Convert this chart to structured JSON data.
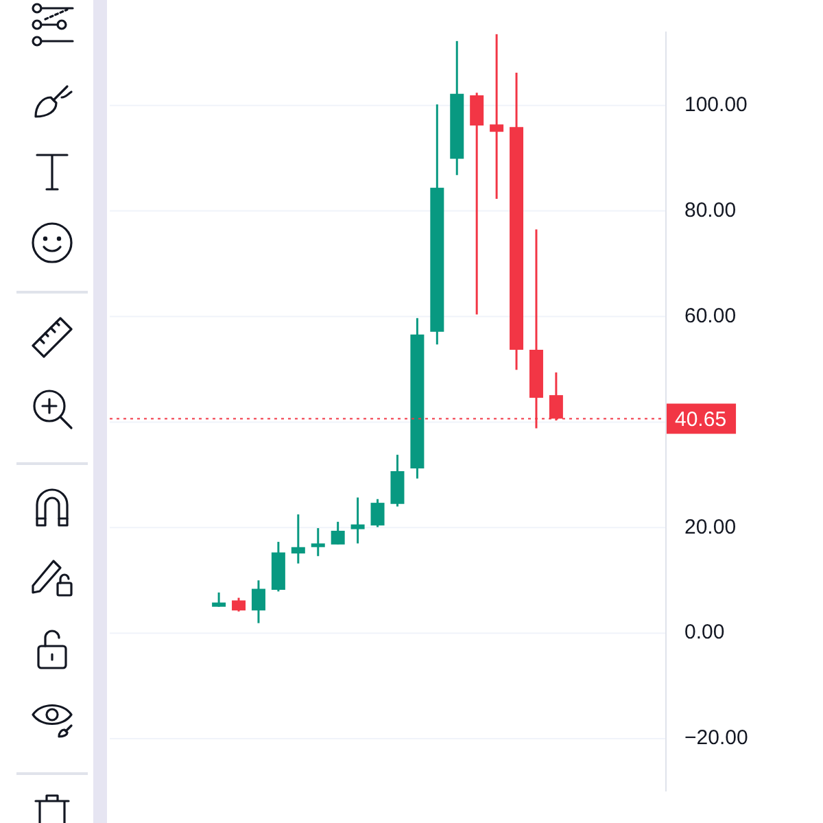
{
  "chart_data": {
    "type": "candlestick",
    "categories": [
      null,
      null,
      null,
      null,
      null,
      null,
      null,
      null,
      null,
      null,
      null,
      null,
      null,
      null,
      null,
      null,
      null,
      null,
      null,
      null,
      null,
      null,
      null,
      null,
      null,
      null,
      null,
      null
    ],
    "ohlc": [
      null,
      null,
      null,
      null,
      null,
      [
        5.0,
        7.7,
        5.0,
        5.8
      ],
      [
        6.2,
        6.7,
        4.1,
        4.3
      ],
      [
        4.3,
        10.0,
        1.9,
        8.4
      ],
      [
        8.2,
        17.3,
        7.9,
        15.3
      ],
      [
        15.1,
        22.5,
        13.2,
        16.3
      ],
      [
        16.3,
        19.9,
        14.6,
        17.0
      ],
      [
        16.8,
        21.1,
        16.8,
        19.4
      ],
      [
        19.7,
        25.7,
        17.0,
        20.6
      ],
      [
        20.4,
        25.4,
        20.1,
        24.7
      ],
      [
        24.5,
        33.8,
        24.0,
        30.7
      ],
      [
        31.2,
        59.7,
        29.3,
        56.6
      ],
      [
        57.1,
        100.2,
        54.7,
        84.4
      ],
      [
        89.9,
        112.2,
        86.8,
        102.2
      ],
      [
        101.9,
        102.4,
        60.4,
        96.2
      ],
      [
        96.4,
        113.5,
        82.3,
        95.0
      ],
      [
        95.9,
        106.2,
        49.9,
        53.7
      ],
      [
        53.7,
        76.5,
        38.8,
        44.6
      ],
      [
        45.1,
        49.4,
        40.3,
        40.65
      ],
      null,
      null,
      null,
      null,
      null
    ],
    "colors": [
      null,
      null,
      null,
      null,
      null,
      "#089981",
      "#f23645",
      "#089981",
      "#089981",
      "#089981",
      "#089981",
      "#089981",
      "#089981",
      "#089981",
      "#089981",
      "#089981",
      "#089981",
      "#089981",
      "#f23645",
      "#f23645",
      "#f23645",
      "#f23645",
      "#f23645",
      null,
      null,
      null,
      null,
      null
    ],
    "ylim": [
      -30,
      114
    ],
    "yticks": [
      {
        "value": -20,
        "label": "−20.00"
      },
      {
        "value": 0,
        "label": "0.00"
      },
      {
        "value": 20,
        "label": "20.00"
      },
      {
        "value": 40,
        "label": null
      },
      {
        "value": 60,
        "label": "60.00"
      },
      {
        "value": 80,
        "label": "80.00"
      },
      {
        "value": 100,
        "label": "100.00"
      }
    ],
    "ref_lines": [
      {
        "axis": "y",
        "value": 40.65,
        "label": "40.65",
        "color": "#f23645",
        "line_style": "dotted"
      }
    ],
    "grid": "y",
    "tick_labels": "y"
  }
}
